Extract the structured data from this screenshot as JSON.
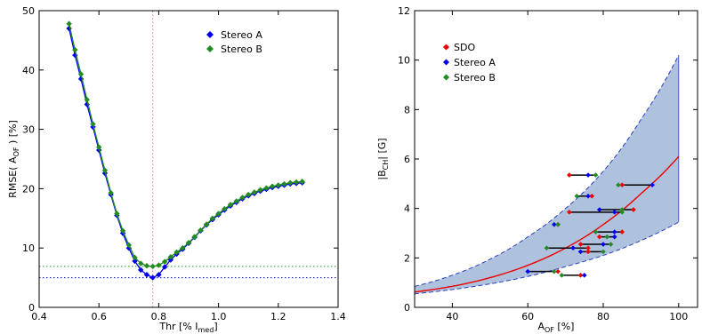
{
  "chart_data": [
    {
      "type": "line",
      "xlabel": "Thr [% I",
      "xlabel_sub": "med",
      "xlabel_end": "]",
      "ylabel": "RMSE( A",
      "ylabel_sub": "OF",
      "ylabel_end": " ) [%]",
      "xlim": [
        0.4,
        1.4
      ],
      "ylim": [
        0,
        50
      ],
      "xticks": [
        0.4,
        0.6,
        0.8,
        1.0,
        1.2,
        1.4
      ],
      "xtick_labels": [
        "0.4",
        "0.6",
        "0.8",
        "1.0",
        "1.2",
        "1.4"
      ],
      "yticks": [
        0,
        10,
        20,
        30,
        40,
        50
      ],
      "ytick_labels": [
        "0",
        "10",
        "20",
        "30",
        "40",
        "50"
      ],
      "x": [
        0.5,
        0.52,
        0.54,
        0.56,
        0.58,
        0.6,
        0.62,
        0.64,
        0.66,
        0.68,
        0.7,
        0.72,
        0.74,
        0.76,
        0.78,
        0.8,
        0.82,
        0.84,
        0.86,
        0.88,
        0.9,
        0.92,
        0.94,
        0.96,
        0.98,
        1.0,
        1.02,
        1.04,
        1.06,
        1.08,
        1.1,
        1.12,
        1.14,
        1.16,
        1.18,
        1.2,
        1.22,
        1.24,
        1.26,
        1.28
      ],
      "series": [
        {
          "name": "Stereo A",
          "color": "#0000ee",
          "marker": "diamond",
          "values": [
            47.0,
            42.5,
            38.5,
            34.2,
            30.4,
            26.5,
            22.6,
            19.0,
            15.5,
            12.5,
            10.0,
            7.8,
            6.3,
            5.5,
            5.0,
            5.5,
            6.8,
            8.0,
            9.0,
            9.8,
            10.8,
            11.8,
            12.9,
            13.9,
            14.8,
            15.6,
            16.4,
            17.1,
            17.7,
            18.3,
            18.8,
            19.2,
            19.6,
            19.9,
            20.2,
            20.4,
            20.6,
            20.8,
            20.9,
            21.0
          ]
        },
        {
          "name": "Stereo B",
          "color": "#228b22",
          "marker": "diamond",
          "values": [
            47.8,
            43.4,
            39.3,
            35.0,
            30.9,
            27.0,
            23.1,
            19.3,
            15.8,
            12.9,
            10.5,
            8.4,
            7.4,
            7.0,
            6.9,
            7.1,
            7.7,
            8.5,
            9.3,
            10.0,
            10.9,
            11.9,
            13.0,
            14.0,
            15.0,
            15.8,
            16.6,
            17.3,
            17.9,
            18.5,
            19.0,
            19.4,
            19.8,
            20.1,
            20.4,
            20.6,
            20.8,
            21.0,
            21.1,
            21.2
          ]
        }
      ],
      "hlines": [
        {
          "y": 5.0,
          "color": "#0000aa",
          "style": "dotted"
        },
        {
          "y": 6.9,
          "color": "#228b22",
          "style": "dotted"
        }
      ],
      "vlines": [
        {
          "x": 0.78,
          "color": "#cc66cc",
          "style": "dotted"
        }
      ],
      "legend": {
        "placement": "top-right",
        "entries": [
          "Stereo A",
          "Stereo B"
        ]
      }
    },
    {
      "type": "scatter",
      "xlabel": "A",
      "xlabel_sub": "OF",
      "xlabel_end": " [%]",
      "ylabel": "|B",
      "ylabel_sub": "CH",
      "ylabel_end": "| [G]",
      "xlim": [
        30,
        105
      ],
      "ylim": [
        0,
        12
      ],
      "xticks": [
        40,
        60,
        80,
        100
      ],
      "xtick_labels": [
        "40",
        "60",
        "80",
        "100"
      ],
      "yticks": [
        0,
        2,
        4,
        6,
        8,
        10,
        12
      ],
      "ytick_labels": [
        "0",
        "2",
        "4",
        "6",
        "8",
        "10",
        "12"
      ],
      "fit_curve": {
        "color": "#ee0000",
        "x": [
          30,
          40,
          50,
          60,
          70,
          80,
          90,
          100
        ],
        "y": [
          0.62,
          0.85,
          1.2,
          1.7,
          2.4,
          3.35,
          4.6,
          6.1
        ]
      },
      "band_upper": {
        "x": [
          30,
          40,
          50,
          60,
          70,
          80,
          90,
          100
        ],
        "y": [
          0.85,
          1.3,
          1.95,
          2.85,
          4.0,
          5.5,
          7.6,
          10.2
        ]
      },
      "band_lower": {
        "x": [
          30,
          40,
          50,
          60,
          70,
          80,
          90,
          100
        ],
        "y": [
          0.55,
          0.72,
          0.95,
          1.25,
          1.65,
          2.1,
          2.7,
          3.45
        ]
      },
      "band_color": "#aec2de",
      "band_edge_color": "#2a3fbf",
      "groups": [
        {
          "y": 5.35,
          "sdo": 71,
          "stereo_a": 76,
          "stereo_b": 78
        },
        {
          "y": 4.95,
          "sdo": 85,
          "stereo_a": 93,
          "stereo_b": 84
        },
        {
          "y": 4.5,
          "sdo": 77,
          "stereo_a": 76,
          "stereo_b": 73
        },
        {
          "y": 3.95,
          "sdo": 88,
          "stereo_a": 79,
          "stereo_b": 85
        },
        {
          "y": 3.85,
          "sdo": 71,
          "stereo_a": 83,
          "stereo_b": 85
        },
        {
          "y": 3.35,
          "sdo": 68,
          "stereo_a": 67,
          "stereo_b": 68
        },
        {
          "y": 3.05,
          "sdo": 85,
          "stereo_a": 83,
          "stereo_b": 78
        },
        {
          "y": 2.85,
          "sdo": 79,
          "stereo_a": 83,
          "stereo_b": 81
        },
        {
          "y": 2.55,
          "sdo": 74,
          "stereo_a": 80,
          "stereo_b": 82
        },
        {
          "y": 2.4,
          "sdo": 76,
          "stereo_a": 72,
          "stereo_b": 65
        },
        {
          "y": 2.25,
          "sdo": 76,
          "stereo_a": 74,
          "stereo_b": 80
        },
        {
          "y": 1.45,
          "sdo": 68,
          "stereo_a": 60,
          "stereo_b": 67
        },
        {
          "y": 1.3,
          "sdo": 74,
          "stereo_a": 75,
          "stereo_b": 69
        }
      ],
      "series_colors": {
        "SDO": "#ee0000",
        "Stereo A": "#0000ee",
        "Stereo B": "#228b22"
      },
      "legend": {
        "placement": "top-left",
        "entries": [
          "SDO",
          "Stereo A",
          "Stereo B"
        ]
      }
    }
  ]
}
